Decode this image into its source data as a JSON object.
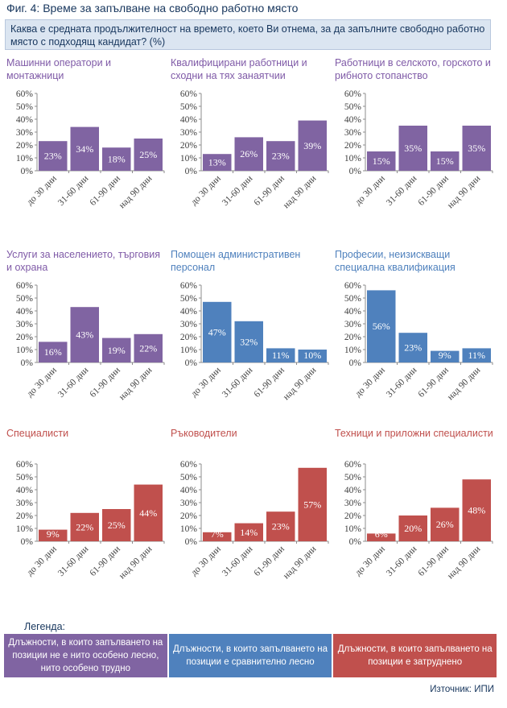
{
  "figure_title": "Фиг. 4: Време за запълване на свободно работно място",
  "question": "Каква е средната продължителност на времето, което Ви отнема, за да запълните свободно работно място с подходящ кандидат? (%)",
  "legend_label": "Легенда:",
  "legend": [
    {
      "text": "Длъжности, в които запълването на позиции не е нито особено лесно, нито особено трудно",
      "color": "#8064a2"
    },
    {
      "text": "Длъжности, в които запълването на позиции е сравнително лесно",
      "color": "#4f81bd"
    },
    {
      "text": "Длъжности, в които запълването на позиции е затруднено",
      "color": "#c0504d"
    }
  ],
  "source": "Източник: ИПИ",
  "chart_data": [
    {
      "type": "bar",
      "title": "Машинни оператори и монтажници",
      "color": "#8064a2",
      "title_color": "#7030a0",
      "categories": [
        "до 30 дни",
        "31-60 дни",
        "61-90 дни",
        "над 90 дни"
      ],
      "values": [
        23,
        34,
        18,
        25
      ],
      "labels": [
        "23%",
        "34%",
        "18%",
        "25%"
      ],
      "ylim": [
        0,
        60
      ],
      "yticks": [
        "0%",
        "10%",
        "20%",
        "30%",
        "40%",
        "50%",
        "60%"
      ]
    },
    {
      "type": "bar",
      "title": "Квалифицирани работници и сходни на тях занаятчии",
      "color": "#8064a2",
      "title_color": "#7030a0",
      "categories": [
        "до 30 дни",
        "31-60 дни",
        "61-90 дни",
        "над 90 дни"
      ],
      "values": [
        13,
        26,
        23,
        39
      ],
      "labels": [
        "13%",
        "26%",
        "23%",
        "39%"
      ],
      "ylim": [
        0,
        60
      ],
      "yticks": [
        "0%",
        "10%",
        "20%",
        "30%",
        "40%",
        "50%",
        "60%"
      ]
    },
    {
      "type": "bar",
      "title": "Работници в селското, горското и рибното стопанство",
      "color": "#8064a2",
      "title_color": "#7030a0",
      "categories": [
        "до 30 дни",
        "31-60 дни",
        "61-90 дни",
        "над 90 дни"
      ],
      "values": [
        15,
        35,
        15,
        35
      ],
      "labels": [
        "15%",
        "35%",
        "15%",
        "35%"
      ],
      "ylim": [
        0,
        60
      ],
      "yticks": [
        "0%",
        "10%",
        "20%",
        "30%",
        "40%",
        "50%",
        "60%"
      ]
    },
    {
      "type": "bar",
      "title": "Услуги за населението, търговия и охрана",
      "color": "#8064a2",
      "title_color": "#7030a0",
      "categories": [
        "до 30 дни",
        "31-60 дни",
        "61-90 дни",
        "над 90 дни"
      ],
      "values": [
        16,
        43,
        19,
        22
      ],
      "labels": [
        "16%",
        "43%",
        "19%",
        "22%"
      ],
      "ylim": [
        0,
        60
      ],
      "yticks": [
        "0%",
        "10%",
        "20%",
        "30%",
        "40%",
        "50%",
        "60%"
      ]
    },
    {
      "type": "bar",
      "title": "Помощен административен персонал",
      "color": "#4f81bd",
      "title_color": "#376092",
      "categories": [
        "до 30 дни",
        "31-60 дни",
        "61-90 дни",
        "над 90 дни"
      ],
      "values": [
        47,
        32,
        11,
        10
      ],
      "labels": [
        "47%",
        "32%",
        "11%",
        "10%"
      ],
      "ylim": [
        0,
        60
      ],
      "yticks": [
        "0%",
        "10%",
        "20%",
        "30%",
        "40%",
        "50%",
        "60%"
      ]
    },
    {
      "type": "bar",
      "title": "Професии, неизискващи специална квалификация",
      "color": "#4f81bd",
      "title_color": "#376092",
      "categories": [
        "до 30 дни",
        "31-60 дни",
        "61-90 дни",
        "над 90 дни"
      ],
      "values": [
        56,
        23,
        9,
        11
      ],
      "labels": [
        "56%",
        "23%",
        "9%",
        "11%"
      ],
      "ylim": [
        0,
        60
      ],
      "yticks": [
        "0%",
        "10%",
        "20%",
        "30%",
        "40%",
        "50%",
        "60%"
      ]
    },
    {
      "type": "bar",
      "title": "Специалисти",
      "color": "#c0504d",
      "title_color": "#c0504d",
      "categories": [
        "до 30 дни",
        "31-60 дни",
        "61-90 дни",
        "над 90 дни"
      ],
      "values": [
        9,
        22,
        25,
        44
      ],
      "labels": [
        "9%",
        "22%",
        "25%",
        "44%"
      ],
      "ylim": [
        0,
        60
      ],
      "yticks": [
        "0%",
        "10%",
        "20%",
        "30%",
        "40%",
        "50%",
        "60%"
      ]
    },
    {
      "type": "bar",
      "title": "Ръководители",
      "color": "#c0504d",
      "title_color": "#c0504d",
      "categories": [
        "до 30 дни",
        "31-60 дни",
        "61-90 дни",
        "над 90 дни"
      ],
      "values": [
        7,
        14,
        23,
        57
      ],
      "labels": [
        "7%",
        "14%",
        "23%",
        "57%"
      ],
      "ylim": [
        0,
        60
      ],
      "yticks": [
        "0%",
        "10%",
        "20%",
        "30%",
        "40%",
        "50%",
        "60%"
      ]
    },
    {
      "type": "bar",
      "title": "Техници и приложни специалисти",
      "color": "#c0504d",
      "title_color": "#c0504d",
      "categories": [
        "до 30 дни",
        "31-60 дни",
        "61-90 дни",
        "над 90 дни"
      ],
      "values": [
        6,
        20,
        26,
        48
      ],
      "labels": [
        "6%",
        "20%",
        "26%",
        "48%"
      ],
      "ylim": [
        0,
        60
      ],
      "yticks": [
        "0%",
        "10%",
        "20%",
        "30%",
        "40%",
        "50%",
        "60%"
      ]
    }
  ]
}
